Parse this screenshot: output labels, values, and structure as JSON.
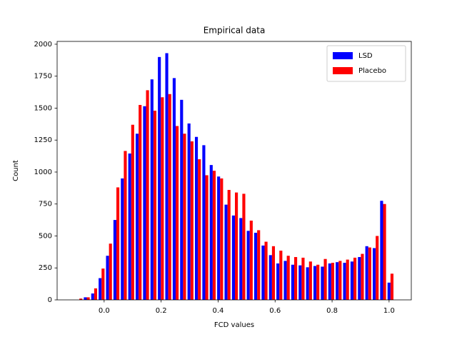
{
  "chart_data": {
    "type": "histogram",
    "title": "Empirical data",
    "xlabel": "FCD values",
    "ylabel": "Count",
    "bins": [
      -0.1,
      -0.074,
      -0.048,
      -0.022,
      0.004,
      0.03,
      0.056,
      0.082,
      0.108,
      0.134,
      0.16,
      0.186,
      0.212,
      0.238,
      0.264,
      0.29,
      0.316,
      0.342,
      0.368,
      0.394,
      0.42,
      0.446,
      0.472,
      0.498,
      0.524,
      0.55,
      0.576,
      0.602,
      0.628,
      0.654,
      0.68,
      0.706,
      0.732,
      0.758,
      0.784,
      0.81,
      0.836,
      0.862,
      0.888,
      0.914,
      0.94,
      0.966,
      0.992,
      1.018
    ],
    "series": [
      {
        "name": "LSD",
        "color": "#0000ff",
        "values": [
          0,
          20,
          50,
          170,
          345,
          625,
          950,
          1145,
          1300,
          1515,
          1725,
          1900,
          1930,
          1735,
          1565,
          1380,
          1275,
          1210,
          1055,
          965,
          745,
          660,
          640,
          540,
          525,
          425,
          350,
          285,
          305,
          275,
          270,
          255,
          265,
          260,
          285,
          295,
          290,
          300,
          335,
          420,
          405,
          775,
          135
        ]
      },
      {
        "name": "Placebo",
        "color": "#ff0000",
        "values": [
          10,
          20,
          90,
          245,
          440,
          880,
          1165,
          1370,
          1525,
          1640,
          1480,
          1585,
          1610,
          1360,
          1300,
          1240,
          1100,
          975,
          1010,
          950,
          860,
          840,
          830,
          620,
          545,
          455,
          420,
          385,
          345,
          335,
          330,
          300,
          275,
          320,
          290,
          305,
          315,
          330,
          360,
          410,
          500,
          750,
          205
        ]
      }
    ],
    "xlim": [
      -0.165,
      1.078
    ],
    "ylim": [
      0,
      2022
    ],
    "xticks": [
      {
        "value": 0,
        "label": "0.0"
      },
      {
        "value": 0.2,
        "label": "0.2"
      },
      {
        "value": 0.4,
        "label": "0.4"
      },
      {
        "value": 0.6,
        "label": "0.6"
      },
      {
        "value": 0.8,
        "label": "0.8"
      },
      {
        "value": 1,
        "label": "1.0"
      }
    ],
    "yticks": [
      0,
      250,
      500,
      750,
      1000,
      1250,
      1500,
      1750,
      2000
    ],
    "legend": "upper right",
    "grid": false
  }
}
